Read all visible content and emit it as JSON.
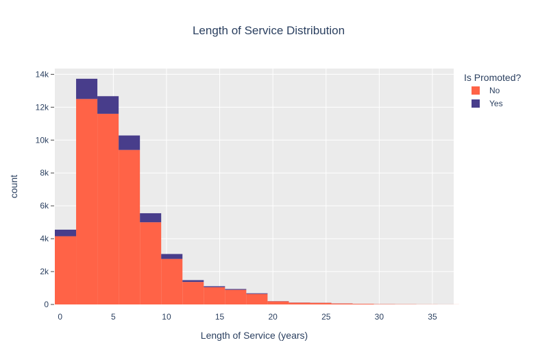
{
  "chart_data": {
    "type": "bar",
    "barmode": "stack",
    "title": "Length of Service Distribution",
    "xlabel": "Length of Service (years)",
    "ylabel": "count",
    "xlim": [
      -0.5,
      37
    ],
    "ylim": [
      0,
      14350
    ],
    "xticks": [
      0,
      5,
      10,
      15,
      20,
      25,
      30,
      35
    ],
    "xtick_labels": [
      "0",
      "5",
      "10",
      "15",
      "20",
      "25",
      "30",
      "35"
    ],
    "yticks": [
      0,
      2000,
      4000,
      6000,
      8000,
      10000,
      12000,
      14000
    ],
    "ytick_labels": [
      "0",
      "2k",
      "4k",
      "6k",
      "8k",
      "10k",
      "12k",
      "14k"
    ],
    "grid": true,
    "legend_title": "Is Promoted?",
    "legend_position": "top-right",
    "bins": [
      {
        "start": -0.5,
        "end": 1.5
      },
      {
        "start": 1.5,
        "end": 3.5
      },
      {
        "start": 3.5,
        "end": 5.5
      },
      {
        "start": 5.5,
        "end": 7.5
      },
      {
        "start": 7.5,
        "end": 9.5
      },
      {
        "start": 9.5,
        "end": 11.5
      },
      {
        "start": 11.5,
        "end": 13.5
      },
      {
        "start": 13.5,
        "end": 15.5
      },
      {
        "start": 15.5,
        "end": 17.5
      },
      {
        "start": 17.5,
        "end": 19.5
      },
      {
        "start": 19.5,
        "end": 21.5
      },
      {
        "start": 21.5,
        "end": 23.5
      },
      {
        "start": 23.5,
        "end": 25.5
      },
      {
        "start": 25.5,
        "end": 27.5
      },
      {
        "start": 27.5,
        "end": 29.5
      },
      {
        "start": 29.5,
        "end": 31.5
      },
      {
        "start": 31.5,
        "end": 33.5
      },
      {
        "start": 33.5,
        "end": 35.5
      },
      {
        "start": 35.5,
        "end": 37.5
      }
    ],
    "series": [
      {
        "name": "No",
        "color": "#ff6347",
        "values": [
          4150,
          12500,
          11600,
          9400,
          5000,
          2770,
          1370,
          1050,
          890,
          640,
          190,
          110,
          100,
          60,
          40,
          20,
          15,
          8,
          4
        ]
      },
      {
        "name": "Yes",
        "color": "#483d8b",
        "values": [
          400,
          1230,
          1070,
          880,
          550,
          300,
          110,
          60,
          50,
          40,
          10,
          8,
          6,
          4,
          2,
          2,
          1,
          0,
          0
        ]
      }
    ]
  }
}
